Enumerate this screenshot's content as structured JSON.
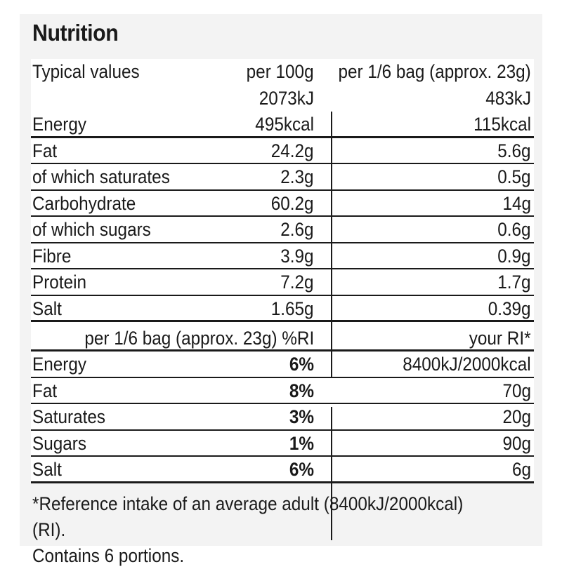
{
  "title": "Nutrition",
  "table1": {
    "header": {
      "label": "Typical values",
      "col1": "per 100g",
      "col2": "per 1/6 bag (approx. 23g)"
    },
    "energy_kj": {
      "col1": "2073kJ",
      "col2": "483kJ"
    },
    "energy_kcal": {
      "label": "Energy",
      "col1": "495kcal",
      "col2": "115kcal"
    },
    "rows": [
      {
        "label": "Fat",
        "col1": "24.2g",
        "col2": "5.6g"
      },
      {
        "label": "of which saturates",
        "col1": "2.3g",
        "col2": "0.5g"
      },
      {
        "label": "Carbohydrate",
        "col1": "60.2g",
        "col2": "14g"
      },
      {
        "label": "of which sugars",
        "col1": "2.6g",
        "col2": "0.6g"
      },
      {
        "label": "Fibre",
        "col1": "3.9g",
        "col2": "0.9g"
      },
      {
        "label": "Protein",
        "col1": "7.2g",
        "col2": "1.7g"
      },
      {
        "label": "Salt",
        "col1": "1.65g",
        "col2": "0.39g"
      }
    ]
  },
  "table2": {
    "header": {
      "col1": "per 1/6 bag (approx. 23g) %RI",
      "col2": "your RI*"
    },
    "rows": [
      {
        "label": "Energy",
        "col1": "6%",
        "col2": "8400kJ/2000kcal"
      },
      {
        "label": "Fat",
        "col1": "8%",
        "col2": "70g"
      },
      {
        "label": "Saturates",
        "col1": "3%",
        "col2": "20g"
      },
      {
        "label": "Sugars",
        "col1": "1%",
        "col2": "90g"
      },
      {
        "label": "Salt",
        "col1": "6%",
        "col2": "6g"
      }
    ]
  },
  "footer": {
    "line1": "*Reference intake of an average adult (8400kJ/2000kcal) (RI).",
    "line2": "Contains 6 portions."
  }
}
